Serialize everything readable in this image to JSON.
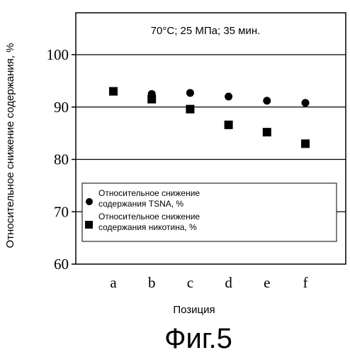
{
  "chart_data": {
    "type": "scatter",
    "annotation": "70°C; 25 МПа; 35 мин.",
    "xlabel": "Позиция",
    "ylabel": "Относительное снижение содержания, %",
    "categories": [
      "a",
      "b",
      "c",
      "d",
      "e",
      "f"
    ],
    "ylim": [
      60,
      108
    ],
    "yticks": [
      60,
      70,
      80,
      90,
      100
    ],
    "grid": "horizontal",
    "legend_position": "lower-center",
    "series": [
      {
        "name": "Относительное снижение содержания TSNA, %",
        "legend_lines": [
          "Относительное снижение",
          "содержания TSNA, %"
        ],
        "marker": "circle",
        "values": [
          93.0,
          92.5,
          92.7,
          92.0,
          91.2,
          90.8
        ]
      },
      {
        "name": "Относительное снижение содержания никотина, %",
        "legend_lines": [
          "Относительное снижение",
          "содержания никотина, %"
        ],
        "marker": "square",
        "values": [
          93.0,
          91.5,
          89.6,
          86.6,
          85.2,
          83.0
        ]
      }
    ]
  },
  "figure_label": "Фиг.5"
}
